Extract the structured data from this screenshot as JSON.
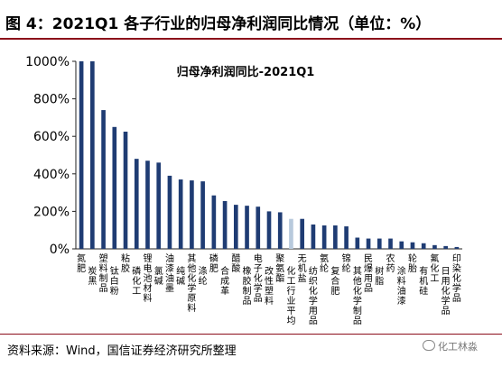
{
  "figure_title": "图 4：2021Q1 各子行业的归母净利润同比情况（单位：%）",
  "source": "资料来源：Wind，国信证券经济研究所整理",
  "watermark": "化工林淼",
  "colors": {
    "bar": "#1f3c73",
    "highlight": "#b8c9dc",
    "rule": "#8b0d1a"
  },
  "chart_data": {
    "type": "bar",
    "title": "归母净利润同比-2021Q1",
    "ylim": [
      0,
      1000
    ],
    "yticks": [
      0,
      200,
      400,
      600,
      800,
      1000
    ],
    "ytick_labels": [
      "0%",
      "200%",
      "400%",
      "600%",
      "800%",
      "1000%"
    ],
    "grid": false,
    "categories": [
      "氮肥",
      "炭黑",
      "塑料制品",
      "钛白粉",
      "粘胶",
      "磷化工",
      "锂电池材料",
      "氯碱",
      "油漆油墨",
      "纯碱",
      "其他化学原料",
      "涤纶",
      "磷肥",
      "合成革",
      "醋酸",
      "橡胶制品",
      "电子化学品",
      "改性塑料",
      "聚氨酯",
      "化工行业平均",
      "无机盐",
      "纺织化学用品",
      "氨纶",
      "复合肥",
      "锦纶",
      "其他化学制品",
      "民爆用品",
      "树脂",
      "农药",
      "涂料油漆",
      "轮胎",
      "有机硅",
      "氟化工",
      "日用化学品",
      "印染化学品"
    ],
    "values": [
      1000,
      1000,
      740,
      650,
      625,
      480,
      470,
      460,
      390,
      370,
      365,
      360,
      285,
      255,
      235,
      230,
      225,
      200,
      195,
      160,
      160,
      130,
      125,
      125,
      120,
      60,
      55,
      55,
      55,
      40,
      35,
      30,
      20,
      15,
      10
    ],
    "highlight_category": "化工行业平均"
  }
}
